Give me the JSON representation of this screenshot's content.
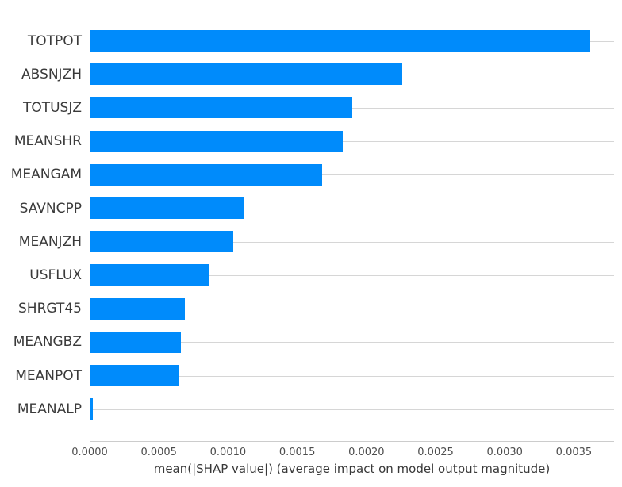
{
  "chart_data": {
    "type": "bar",
    "orientation": "horizontal",
    "title": "",
    "xlabel": "mean(|SHAP value|) (average impact on model output magnitude)",
    "ylabel": "",
    "categories": [
      "TOTPOT",
      "ABSNJZH",
      "TOTUSJZ",
      "MEANSHR",
      "MEANGAM",
      "SAVNCPP",
      "MEANJZH",
      "USFLUX",
      "SHRGT45",
      "MEANGBZ",
      "MEANPOT",
      "MEANALP"
    ],
    "values": [
      0.00362,
      0.00226,
      0.0019,
      0.00183,
      0.00168,
      0.00111,
      0.00104,
      0.00086,
      0.00069,
      0.00066,
      0.00064,
      2.5e-05
    ],
    "xticks": [
      0.0,
      0.0005,
      0.001,
      0.0015,
      0.002,
      0.0025,
      0.003,
      0.0035
    ],
    "xtick_labels": [
      "0.0000",
      "0.0005",
      "0.0010",
      "0.0015",
      "0.0020",
      "0.0025",
      "0.0030",
      "0.0035"
    ],
    "xlim": [
      0,
      0.00379
    ],
    "grid": true,
    "legend_position": "none",
    "bar_color": "#008bfb",
    "grid_color": "#d3d3d3",
    "axis_line_color": "#cccccc",
    "tick_label_color": "#4d4d4d",
    "category_label_color": "#3a3a3a",
    "background_color": "#ffffff"
  }
}
